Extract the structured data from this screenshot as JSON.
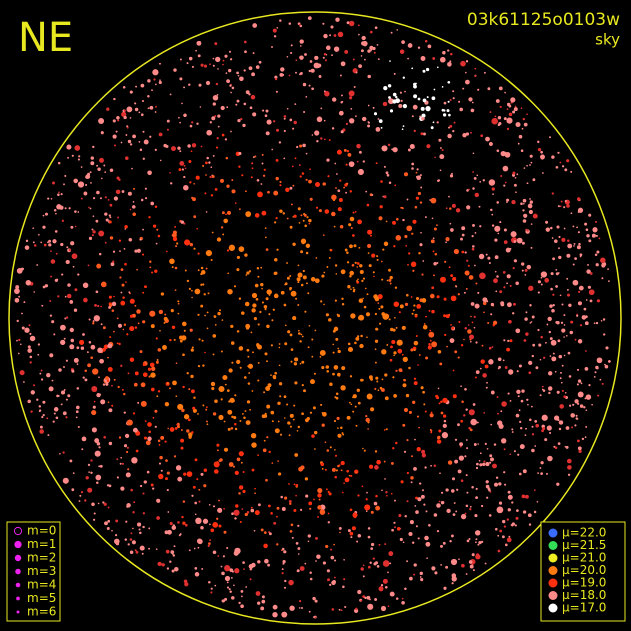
{
  "header": {
    "direction": "NE",
    "frame_id": "03k61125o0103w",
    "frame_type": "sky"
  },
  "magnitude_legend": [
    "m=0",
    "m=1",
    "m=2",
    "m=3",
    "m=4",
    "m=5",
    "m=6"
  ],
  "sky_legend": [
    {
      "label": "μ=22.0",
      "color": "#3a6cff"
    },
    {
      "label": "μ=21.5",
      "color": "#33dd55"
    },
    {
      "label": "μ=21.0",
      "color": "#eeee22"
    },
    {
      "label": "μ=20.0",
      "color": "#ff7a10"
    },
    {
      "label": "μ=19.0",
      "color": "#ff3010"
    },
    {
      "label": "μ=18.0",
      "color": "#ff8a8a"
    },
    {
      "label": "μ=17.0",
      "color": "#ffffff"
    }
  ]
}
